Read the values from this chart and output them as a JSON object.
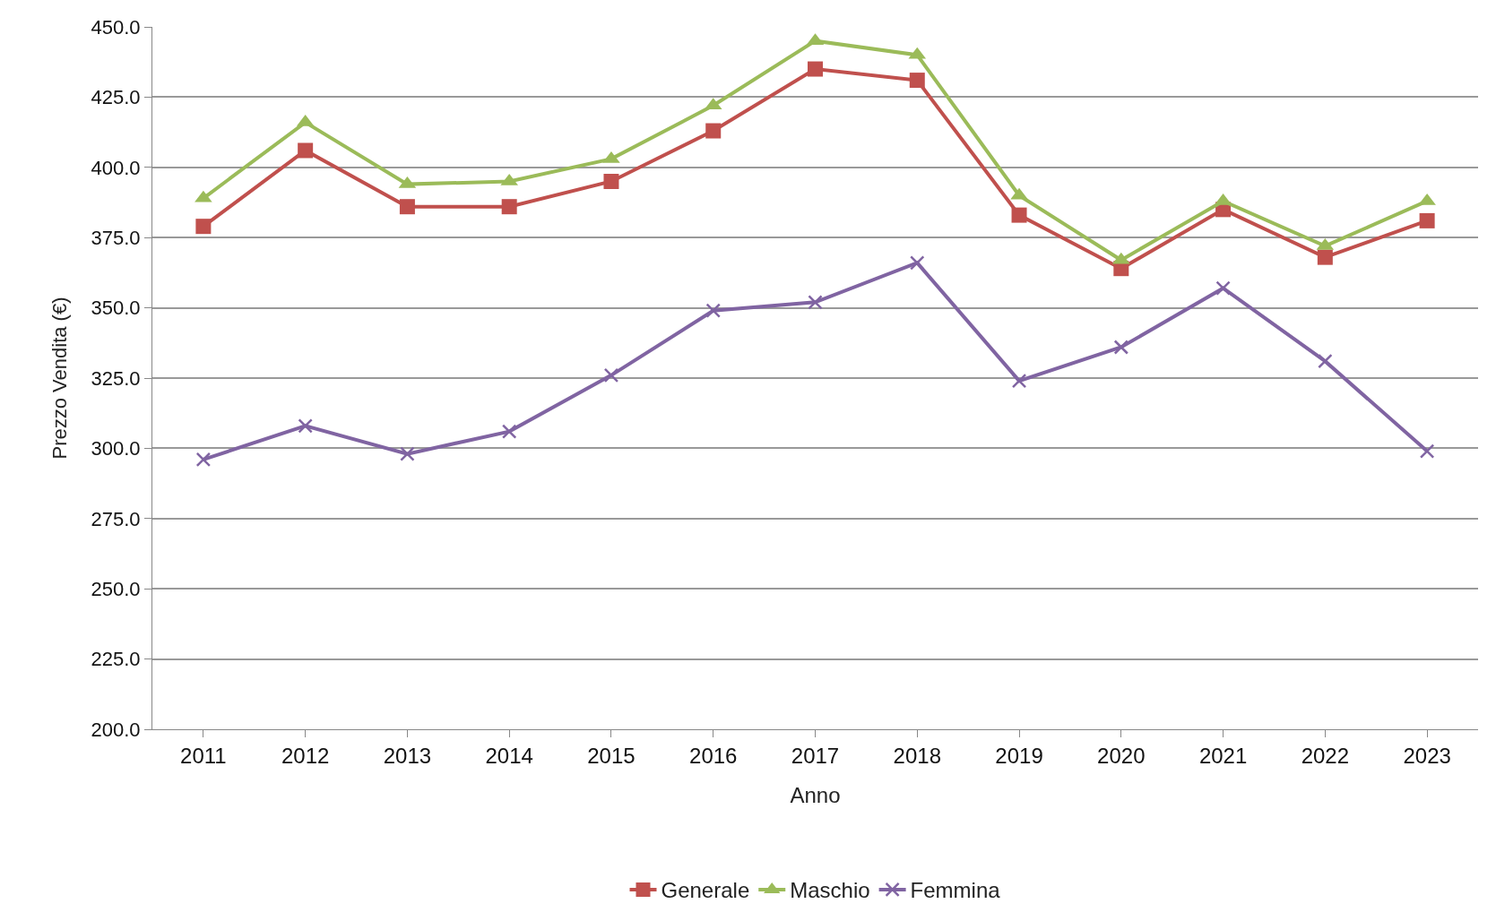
{
  "chart_data": {
    "type": "line",
    "xlabel": "Anno",
    "ylabel": "Prezzo Vendita (€)",
    "categories": [
      "2011",
      "2012",
      "2013",
      "2014",
      "2015",
      "2016",
      "2017",
      "2018",
      "2019",
      "2020",
      "2021",
      "2022",
      "2023"
    ],
    "series": [
      {
        "name": "Generale",
        "color": "#c0504d",
        "marker": "square",
        "values": [
          379,
          406,
          386,
          386,
          395,
          413,
          435,
          431,
          383,
          364,
          385,
          368,
          381
        ]
      },
      {
        "name": "Maschio",
        "color": "#9bbb59",
        "marker": "triangle",
        "values": [
          389,
          416,
          394,
          395,
          403,
          422,
          445,
          440,
          390,
          367,
          388,
          372,
          388
        ]
      },
      {
        "name": "Femmina",
        "color": "#8064a2",
        "marker": "cross",
        "values": [
          296,
          308,
          298,
          306,
          326,
          349,
          352,
          366,
          324,
          336,
          357,
          331,
          299
        ]
      }
    ],
    "ylim": [
      200,
      450
    ],
    "yticks": [
      {
        "value": 200,
        "label": "200.0"
      },
      {
        "value": 225,
        "label": "225.0"
      },
      {
        "value": 250,
        "label": "250.0"
      },
      {
        "value": 275,
        "label": "275.0"
      },
      {
        "value": 300,
        "label": "300.0"
      },
      {
        "value": 325,
        "label": "325.0"
      },
      {
        "value": 350,
        "label": "350.0"
      },
      {
        "value": 375,
        "label": "375.0"
      },
      {
        "value": 400,
        "label": "400.0"
      },
      {
        "value": 425,
        "label": "425.0"
      },
      {
        "value": 450,
        "label": "450.0"
      }
    ],
    "grid": "y",
    "legend": "bottom",
    "line_style": "solid"
  }
}
